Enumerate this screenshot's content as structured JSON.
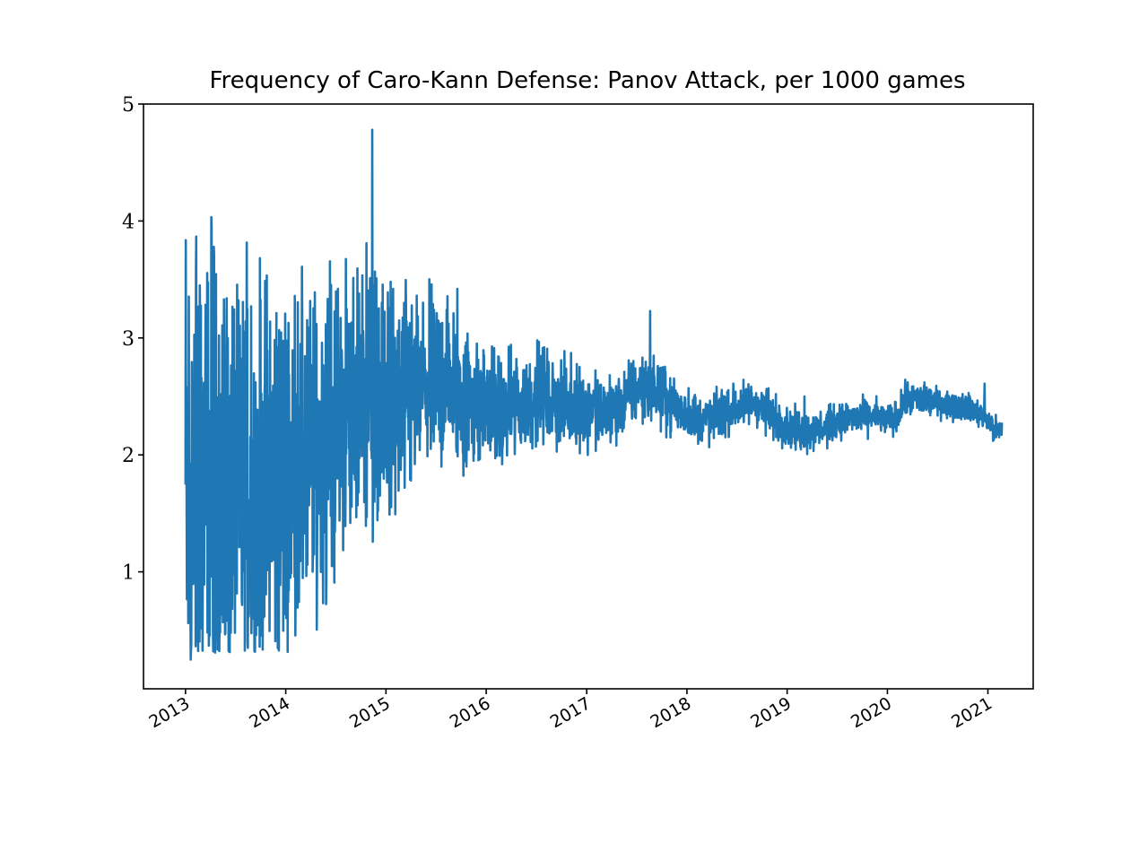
{
  "chart_data": {
    "type": "line",
    "title": "Frequency of Caro-Kann Defense: Panov Attack, per 1000 games",
    "xlabel": "",
    "ylabel": "",
    "xlim": [
      "2012-08-01",
      "2021-06-15"
    ],
    "ylim": [
      0,
      5
    ],
    "grid": false,
    "legend": "none",
    "line_color": "#1f77b4",
    "x_ticks": [
      "2013",
      "2014",
      "2015",
      "2016",
      "2017",
      "2018",
      "2019",
      "2020",
      "2021"
    ],
    "y_ticks": [
      "1",
      "2",
      "3",
      "4",
      "5"
    ],
    "series": [
      {
        "x": [
          "2013-01",
          "2013-02",
          "2013-03",
          "2013-04",
          "2013-05",
          "2013-06",
          "2013-07",
          "2013-08",
          "2013-09",
          "2013-10",
          "2013-11",
          "2013-12",
          "2014-01",
          "2014-02",
          "2014-03",
          "2014-04",
          "2014-05",
          "2014-06",
          "2014-07",
          "2014-08",
          "2014-09",
          "2014-10",
          "2014-11",
          "2014-12",
          "2015-01",
          "2015-02",
          "2015-03",
          "2015-04",
          "2015-05",
          "2015-06",
          "2015-07",
          "2015-08",
          "2015-09",
          "2015-10",
          "2015-11",
          "2015-12",
          "2016-01",
          "2016-02",
          "2016-03",
          "2016-04",
          "2016-05",
          "2016-06",
          "2016-07",
          "2016-08",
          "2016-09",
          "2016-10",
          "2016-11",
          "2016-12",
          "2017-01",
          "2017-02",
          "2017-03",
          "2017-04",
          "2017-05",
          "2017-06",
          "2017-07",
          "2017-08",
          "2017-09",
          "2017-10",
          "2017-11",
          "2017-12",
          "2018-01",
          "2018-02",
          "2018-03",
          "2018-04",
          "2018-05",
          "2018-06",
          "2018-07",
          "2018-08",
          "2018-09",
          "2018-10",
          "2018-11",
          "2018-12",
          "2019-01",
          "2019-02",
          "2019-03",
          "2019-04",
          "2019-05",
          "2019-06",
          "2019-07",
          "2019-08",
          "2019-09",
          "2019-10",
          "2019-11",
          "2019-12",
          "2020-01",
          "2020-02",
          "2020-03",
          "2020-04",
          "2020-05",
          "2020-06",
          "2020-07",
          "2020-08",
          "2020-09",
          "2020-10",
          "2020-11",
          "2020-12",
          "2021-01",
          "2021-02"
        ],
        "values": [
          1.5,
          1.5,
          1.6,
          1.55,
          1.55,
          1.7,
          1.75,
          1.65,
          1.65,
          1.7,
          1.75,
          1.8,
          1.8,
          1.85,
          1.9,
          2.0,
          2.05,
          2.15,
          2.25,
          2.3,
          2.35,
          2.45,
          2.5,
          2.45,
          2.4,
          2.4,
          2.45,
          2.5,
          2.55,
          2.55,
          2.6,
          2.65,
          2.6,
          2.5,
          2.5,
          2.45,
          2.45,
          2.4,
          2.35,
          2.4,
          2.4,
          2.45,
          2.5,
          2.5,
          2.45,
          2.45,
          2.4,
          2.45,
          2.4,
          2.38,
          2.35,
          2.38,
          2.42,
          2.5,
          2.55,
          2.6,
          2.55,
          2.5,
          2.45,
          2.4,
          2.35,
          2.32,
          2.3,
          2.3,
          2.35,
          2.38,
          2.4,
          2.42,
          2.45,
          2.4,
          2.35,
          2.3,
          2.25,
          2.22,
          2.2,
          2.2,
          2.22,
          2.25,
          2.28,
          2.3,
          2.32,
          2.32,
          2.33,
          2.32,
          2.3,
          2.3,
          2.45,
          2.48,
          2.48,
          2.46,
          2.45,
          2.44,
          2.42,
          2.42,
          2.4,
          2.35,
          2.3,
          2.2
        ],
        "spread": [
          1.2,
          1.1,
          1.0,
          1.0,
          0.95,
          0.9,
          0.85,
          0.85,
          0.8,
          0.75,
          0.75,
          0.7,
          0.7,
          0.65,
          0.62,
          0.6,
          0.58,
          0.55,
          0.55,
          0.52,
          0.5,
          0.5,
          0.5,
          0.48,
          0.45,
          0.42,
          0.4,
          0.38,
          0.35,
          0.34,
          0.33,
          0.32,
          0.3,
          0.28,
          0.26,
          0.24,
          0.22,
          0.2,
          0.2,
          0.19,
          0.18,
          0.18,
          0.17,
          0.16,
          0.16,
          0.15,
          0.15,
          0.15,
          0.14,
          0.14,
          0.13,
          0.13,
          0.12,
          0.12,
          0.12,
          0.12,
          0.11,
          0.11,
          0.1,
          0.1,
          0.1,
          0.09,
          0.09,
          0.09,
          0.09,
          0.09,
          0.08,
          0.08,
          0.08,
          0.08,
          0.08,
          0.08,
          0.07,
          0.07,
          0.07,
          0.07,
          0.07,
          0.07,
          0.06,
          0.06,
          0.06,
          0.06,
          0.06,
          0.06,
          0.06,
          0.06,
          0.06,
          0.06,
          0.06,
          0.06,
          0.05,
          0.05,
          0.05,
          0.05,
          0.05,
          0.05,
          0.05,
          0.05
        ],
        "spikes": [
          {
            "x": "2013-01-04",
            "value": 2.58
          },
          {
            "x": "2013-01-20",
            "value": 0.25
          },
          {
            "x": "2013-02-15",
            "value": 3.15
          },
          {
            "x": "2013-02-22",
            "value": 3.45
          },
          {
            "x": "2013-04-06",
            "value": 3.96
          },
          {
            "x": "2013-04-18",
            "value": 0.42
          },
          {
            "x": "2013-06-15",
            "value": 0.48
          },
          {
            "x": "2013-07-10",
            "value": 3.02
          },
          {
            "x": "2013-08-28",
            "value": 3.27
          },
          {
            "x": "2013-09-04",
            "value": 0.6
          },
          {
            "x": "2013-10-15",
            "value": 0.62
          },
          {
            "x": "2013-11-05",
            "value": 3.14
          },
          {
            "x": "2014-06-05",
            "value": 3.24
          },
          {
            "x": "2014-07-10",
            "value": 3.42
          },
          {
            "x": "2014-09-25",
            "value": 3.38
          },
          {
            "x": "2014-10-22",
            "value": 3.81
          },
          {
            "x": "2014-11-12",
            "value": 4.78
          },
          {
            "x": "2014-11-20",
            "value": 1.6
          },
          {
            "x": "2015-01-08",
            "value": 3.39
          },
          {
            "x": "2015-03-10",
            "value": 1.72
          },
          {
            "x": "2015-06-25",
            "value": 3.24
          },
          {
            "x": "2015-09-18",
            "value": 3.42
          },
          {
            "x": "2015-10-08",
            "value": 2.02
          },
          {
            "x": "2016-02-28",
            "value": 1.92
          },
          {
            "x": "2016-04-20",
            "value": 2.82
          },
          {
            "x": "2016-07-05",
            "value": 2.98
          },
          {
            "x": "2017-01-05",
            "value": 2.0
          },
          {
            "x": "2017-08-20",
            "value": 3.23
          },
          {
            "x": "2017-10-05",
            "value": 2.75
          },
          {
            "x": "2019-01-15",
            "value": 2.06
          },
          {
            "x": "2019-03-05",
            "value": 2.5
          },
          {
            "x": "2020-03-15",
            "value": 2.62
          },
          {
            "x": "2020-05-15",
            "value": 2.62
          },
          {
            "x": "2020-12-20",
            "value": 2.61
          },
          {
            "x": "2021-01-20",
            "value": 2.12
          }
        ]
      }
    ]
  }
}
